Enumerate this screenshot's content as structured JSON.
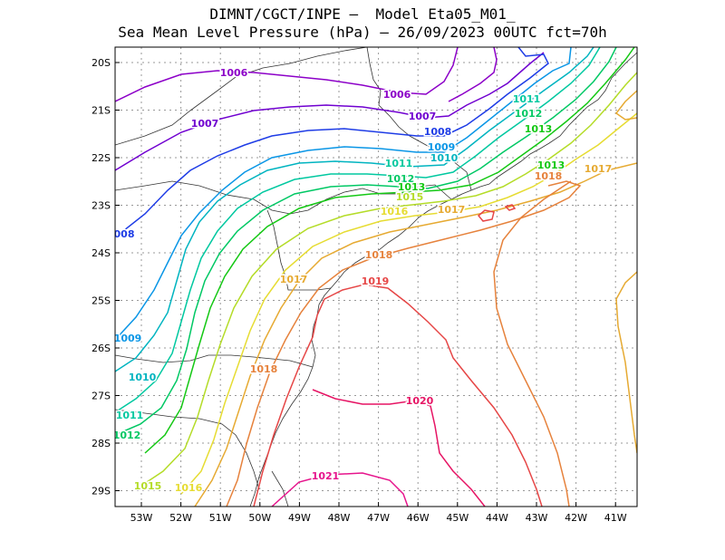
{
  "title_line1": "DIMNT/CGCT/INPE –  Model Eta05_M01_",
  "title_line2": "Sea Mean Level Pressure (hPa) – 26/09/2023 00UTC fct=70h",
  "lon_labels": [
    "53W",
    "52W",
    "51W",
    "50W",
    "49W",
    "48W",
    "47W",
    "46W",
    "45W",
    "44W",
    "43W",
    "42W",
    "41W"
  ],
  "lat_labels": [
    "20S",
    "21S",
    "22S",
    "23S",
    "24S",
    "25S",
    "26S",
    "27S",
    "28S",
    "29S"
  ],
  "colors": {
    "1006": "#8c00c8",
    "1007": "#7000d0",
    "1008": "#1e3ce6",
    "1009": "#0a96e6",
    "1010": "#00b4c0",
    "1011": "#00c8a0",
    "1012": "#00c864",
    "1013": "#14c814",
    "1015": "#b4dc28",
    "1016": "#e6dc32",
    "1017": "#e6aa32",
    "1018": "#e6823c",
    "1019": "#e64646",
    "1020": "#e61464",
    "1021": "#e6148c"
  },
  "contour_labels": [
    {
      "text": "1006",
      "level": "1006"
    },
    {
      "text": "1006",
      "level": "1006"
    },
    {
      "text": "1007",
      "level": "1007"
    },
    {
      "text": "1007",
      "level": "1007"
    },
    {
      "text": "1008",
      "level": "1008"
    },
    {
      "text": "008",
      "level": "1008"
    },
    {
      "text": "1009",
      "level": "1009"
    },
    {
      "text": "1009",
      "level": "1009"
    },
    {
      "text": "1010",
      "level": "1010"
    },
    {
      "text": "1010",
      "level": "1010"
    },
    {
      "text": "1011",
      "level": "1011"
    },
    {
      "text": "1011",
      "level": "1011"
    },
    {
      "text": "1011",
      "level": "1011"
    },
    {
      "text": "1012",
      "level": "1012"
    },
    {
      "text": "1012",
      "level": "1012"
    },
    {
      "text": "1012",
      "level": "1012"
    },
    {
      "text": "1013",
      "level": "1013"
    },
    {
      "text": "1013",
      "level": "1013"
    },
    {
      "text": "1013",
      "level": "1013"
    },
    {
      "text": "1015",
      "level": "1015"
    },
    {
      "text": "1015",
      "level": "1015"
    },
    {
      "text": "1016",
      "level": "1016"
    },
    {
      "text": "1016",
      "level": "1016"
    },
    {
      "text": "1017",
      "level": "1017"
    },
    {
      "text": "1017",
      "level": "1017"
    },
    {
      "text": "1017",
      "level": "1017"
    },
    {
      "text": "1018",
      "level": "1018"
    },
    {
      "text": "1018",
      "level": "1018"
    },
    {
      "text": "1018",
      "level": "1018"
    },
    {
      "text": "1019",
      "level": "1019"
    },
    {
      "text": "1020",
      "level": "1020"
    },
    {
      "text": "1021",
      "level": "1021"
    }
  ]
}
